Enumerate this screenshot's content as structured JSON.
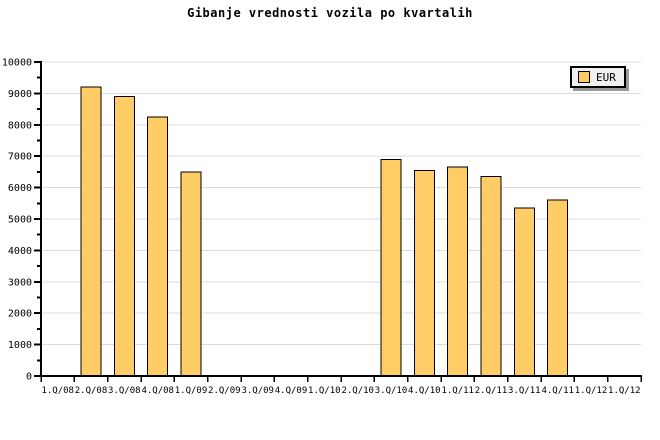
{
  "title": "Gibanje vrednosti vozila po kvartalih",
  "legend": {
    "label": "EUR",
    "position": "top-right",
    "background": "#F0F0F0",
    "border_color": "#000000",
    "shadow_color": "#999999"
  },
  "chart_data": {
    "type": "bar",
    "title": "Gibanje vrednosti vozila po kvartalih",
    "categories": [
      "1.Q/08",
      "2.Q/08",
      "3.Q/08",
      "4.Q/08",
      "1.Q/09",
      "2.Q/09",
      "3.Q/09",
      "4.Q/09",
      "1.Q/10",
      "2.Q/10",
      "3.Q/10",
      "4.Q/10",
      "1.Q/11",
      "2.Q/11",
      "3.Q/11",
      "4.Q/11",
      "1.Q/12",
      "1.Q/12"
    ],
    "series": [
      {
        "name": "EUR",
        "values": [
          null,
          9200,
          8900,
          8250,
          6500,
          null,
          null,
          null,
          null,
          null,
          6900,
          6550,
          6650,
          6350,
          5350,
          5600,
          null,
          null
        ]
      }
    ],
    "xlabel": "",
    "ylabel": "",
    "ylim": [
      0,
      10000
    ],
    "ytick_step": 1000,
    "ytick_minor_step": 500,
    "ytick_labels": [
      "0",
      "1000",
      "2000",
      "3000",
      "4000",
      "5000",
      "6000",
      "7000",
      "8000",
      "9000",
      "10000"
    ],
    "grid": "horizontal-major",
    "legend_position": "top-right",
    "bar_color": "#FFCC66",
    "bar_border_color": "#000000",
    "grid_color": "#DCDCDC",
    "axis_color": "#000000",
    "background": "#FFFFFF"
  }
}
